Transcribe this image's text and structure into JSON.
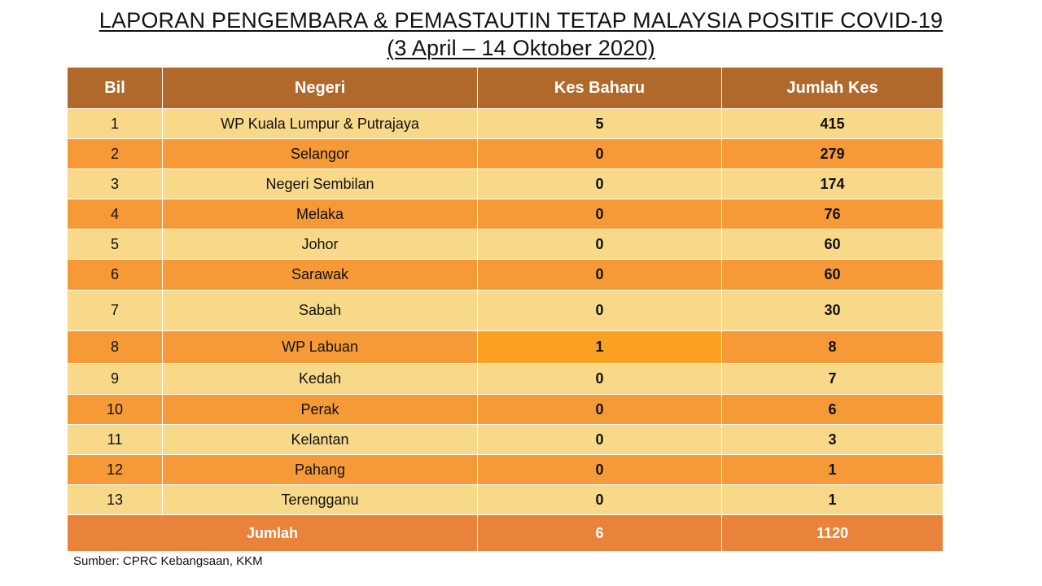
{
  "title": {
    "line1": "LAPORAN PENGEMBARA & PEMASTAUTIN TETAP MALAYSIA POSITIF COVID-19",
    "line2": "(3 April –  14 Oktober 2020)"
  },
  "table": {
    "headers": [
      "Bil",
      "Negeri",
      "Kes Baharu",
      "Jumlah Kes"
    ],
    "rows": [
      {
        "bil": "1",
        "negeri": "WP Kuala Lumpur & Putrajaya",
        "kes_baharu": "5",
        "jumlah_kes": "415"
      },
      {
        "bil": "2",
        "negeri": "Selangor",
        "kes_baharu": "0",
        "jumlah_kes": "279"
      },
      {
        "bil": "3",
        "negeri": "Negeri Sembilan",
        "kes_baharu": "0",
        "jumlah_kes": "174"
      },
      {
        "bil": "4",
        "negeri": "Melaka",
        "kes_baharu": "0",
        "jumlah_kes": "76"
      },
      {
        "bil": "5",
        "negeri": "Johor",
        "kes_baharu": "0",
        "jumlah_kes": "60"
      },
      {
        "bil": "6",
        "negeri": "Sarawak",
        "kes_baharu": "0",
        "jumlah_kes": "60"
      },
      {
        "bil": "7",
        "negeri": "Sabah",
        "kes_baharu": "0",
        "jumlah_kes": "30"
      },
      {
        "bil": "8",
        "negeri": "WP Labuan",
        "kes_baharu": "1",
        "jumlah_kes": "8"
      },
      {
        "bil": "9",
        "negeri": "Kedah",
        "kes_baharu": "0",
        "jumlah_kes": "7"
      },
      {
        "bil": "10",
        "negeri": "Perak",
        "kes_baharu": "0",
        "jumlah_kes": "6"
      },
      {
        "bil": "11",
        "negeri": "Kelantan",
        "kes_baharu": "0",
        "jumlah_kes": "3"
      },
      {
        "bil": "12",
        "negeri": "Pahang",
        "kes_baharu": "0",
        "jumlah_kes": "1"
      },
      {
        "bil": "13",
        "negeri": "Terengganu",
        "kes_baharu": "0",
        "jumlah_kes": "1"
      }
    ],
    "total": {
      "label": "Jumlah",
      "kes_baharu": "6",
      "jumlah_kes": "1120"
    }
  },
  "source": "Sumber: CPRC Kebangsaan, KKM",
  "colors": {
    "header_bg": "#b0692b",
    "row_light": "#f8d98a",
    "row_dark": "#f69a38",
    "highlight_cell": "#fba021",
    "total_bg": "#e9823a"
  }
}
